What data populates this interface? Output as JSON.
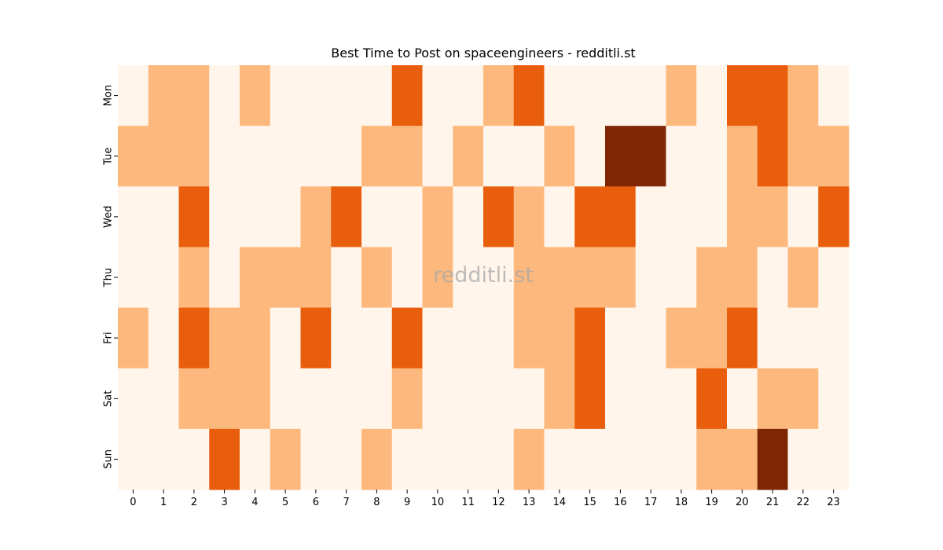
{
  "chart_data": {
    "type": "heatmap",
    "title": "Best Time to Post on spaceengineers - redditli.st",
    "watermark": "redditli.st",
    "x_categories": [
      "0",
      "1",
      "2",
      "3",
      "4",
      "5",
      "6",
      "7",
      "8",
      "9",
      "10",
      "11",
      "12",
      "13",
      "14",
      "15",
      "16",
      "17",
      "18",
      "19",
      "20",
      "21",
      "22",
      "23"
    ],
    "y_categories": [
      "Mon",
      "Tue",
      "Wed",
      "Thu",
      "Fri",
      "Sat",
      "Sun"
    ],
    "xlabel": "",
    "ylabel": "",
    "colormap": "Oranges",
    "color_levels": [
      "#fff5eb",
      "#fdb97d",
      "#e95e0d",
      "#7f2704"
    ],
    "value_range": [
      0,
      3
    ],
    "legend": "none",
    "grid": false,
    "values": [
      [
        0,
        1,
        1,
        0,
        1,
        0,
        0,
        0,
        0,
        2,
        0,
        0,
        1,
        2,
        0,
        0,
        0,
        0,
        1,
        0,
        2,
        2,
        1,
        0
      ],
      [
        1,
        1,
        1,
        0,
        0,
        0,
        0,
        0,
        1,
        1,
        0,
        1,
        0,
        0,
        1,
        0,
        3,
        3,
        0,
        0,
        1,
        2,
        1,
        1
      ],
      [
        0,
        0,
        2,
        0,
        0,
        0,
        1,
        2,
        0,
        0,
        1,
        0,
        2,
        1,
        0,
        2,
        2,
        0,
        0,
        0,
        1,
        1,
        0,
        2
      ],
      [
        0,
        0,
        1,
        0,
        1,
        1,
        1,
        0,
        1,
        0,
        1,
        0,
        0,
        1,
        1,
        1,
        1,
        0,
        0,
        1,
        1,
        0,
        1,
        0
      ],
      [
        1,
        0,
        2,
        1,
        1,
        0,
        2,
        0,
        0,
        2,
        0,
        0,
        0,
        1,
        1,
        2,
        0,
        0,
        1,
        1,
        2,
        0,
        0,
        0
      ],
      [
        0,
        0,
        1,
        1,
        1,
        0,
        0,
        0,
        0,
        1,
        0,
        0,
        0,
        0,
        1,
        2,
        0,
        0,
        0,
        2,
        0,
        1,
        1,
        0
      ],
      [
        0,
        0,
        0,
        2,
        0,
        1,
        0,
        0,
        1,
        0,
        0,
        0,
        0,
        1,
        0,
        0,
        0,
        0,
        0,
        1,
        1,
        3,
        0,
        0
      ]
    ]
  }
}
